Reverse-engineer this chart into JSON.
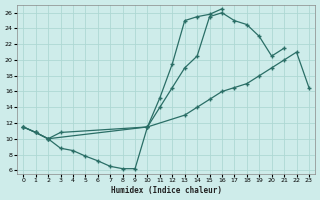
{
  "xlabel": "Humidex (Indice chaleur)",
  "bg_color": "#ceecea",
  "grid_color": "#aed8d4",
  "line_color": "#2a6e66",
  "xlim": [
    -0.5,
    23.5
  ],
  "ylim": [
    5.5,
    27
  ],
  "xticks": [
    0,
    1,
    2,
    3,
    4,
    5,
    6,
    7,
    8,
    9,
    10,
    11,
    12,
    13,
    14,
    15,
    16,
    17,
    18,
    19,
    20,
    21,
    22,
    23
  ],
  "yticks": [
    6,
    8,
    10,
    12,
    14,
    16,
    18,
    20,
    22,
    24,
    26
  ],
  "curve1_x": [
    0,
    1,
    2,
    3,
    4,
    5,
    6,
    7,
    8,
    9,
    10,
    11,
    12,
    13,
    14,
    15,
    16
  ],
  "curve1_y": [
    11.5,
    10.8,
    10.0,
    8.8,
    8.5,
    7.8,
    7.2,
    6.5,
    6.2,
    6.2,
    11.5,
    15.2,
    19.5,
    25.0,
    25.5,
    25.8,
    26.5
  ],
  "curve2_x": [
    0,
    1,
    2,
    3,
    10,
    11,
    12,
    13,
    14,
    15,
    16,
    17,
    18,
    19,
    20,
    21
  ],
  "curve2_y": [
    11.5,
    10.8,
    10.0,
    10.8,
    11.5,
    14.0,
    16.5,
    19.0,
    20.5,
    25.5,
    26.0,
    25.0,
    24.5,
    23.0,
    20.5,
    21.5
  ],
  "curve3_x": [
    0,
    1,
    2,
    10,
    13,
    14,
    15,
    16,
    17,
    18,
    19,
    20,
    21,
    22,
    23
  ],
  "curve3_y": [
    11.5,
    10.8,
    10.0,
    11.5,
    13.0,
    14.0,
    15.0,
    16.0,
    16.5,
    17.0,
    18.0,
    19.0,
    20.0,
    21.0,
    16.5
  ]
}
